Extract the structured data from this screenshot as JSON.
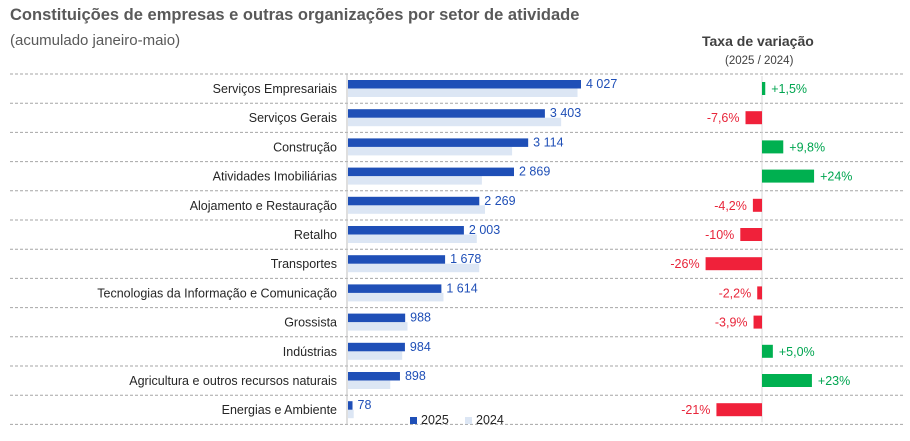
{
  "title": "Constituições de empresas e outras organizações por setor de atividade",
  "subtitle": "(acumulado janeiro-maio)",
  "variation_header": {
    "title": "Taxa de variação",
    "subtitle": "(2025 / 2024)"
  },
  "colors": {
    "series_2025": "#1F4FB7",
    "series_2024": "#DCE6F4",
    "positive": "#00B050",
    "negative": "#F0213A",
    "separator": "#A6A6A6"
  },
  "chart_data": {
    "type": "bar",
    "orientation": "horizontal",
    "categories": [
      "Serviços Empresariais",
      "Serviços Gerais",
      "Construção",
      "Atividades Imobiliárias",
      "Alojamento e Restauração",
      "Retalho",
      "Transportes",
      "Tecnologias da Informação e Comunicação",
      "Grossista",
      "Indústrias",
      "Agricultura e outros recursos naturais",
      "Energias e Ambiente"
    ],
    "series": [
      {
        "name": "2025",
        "values": [
          4027,
          3403,
          3114,
          2869,
          2269,
          2003,
          1678,
          1614,
          988,
          984,
          898,
          78
        ]
      },
      {
        "name": "2024",
        "values": [
          3967,
          3684,
          2836,
          2314,
          2368,
          2226,
          2268,
          1650,
          1028,
          937,
          730,
          99
        ]
      }
    ],
    "value_labels": [
      "4 027",
      "3 403",
      "3 114",
      "2 869",
      "2 269",
      "2 003",
      "1 678",
      "1 614",
      "988",
      "984",
      "898",
      "78"
    ],
    "variation": {
      "values": [
        1.5,
        -7.6,
        9.8,
        24,
        -4.2,
        -10,
        -26,
        -2.2,
        -3.9,
        5.0,
        23,
        -21
      ],
      "labels": [
        "+1,5%",
        "-7,6%",
        "+9,8%",
        "+24%",
        "-4,2%",
        "-10%",
        "-26%",
        "-2,2%",
        "-3,9%",
        "+5,0%",
        "+23%",
        "-21%"
      ]
    },
    "xlim": [
      0,
      4100
    ],
    "legend": [
      "2025",
      "2024"
    ],
    "legend_position": "bottom"
  }
}
